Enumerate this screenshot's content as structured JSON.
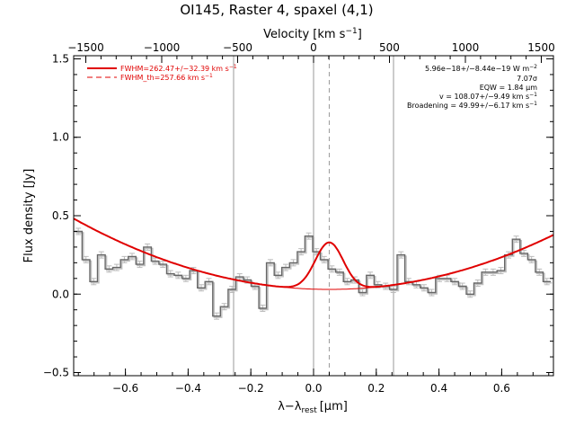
{
  "chart_data": {
    "type": "line",
    "title": "OI145, Raster 4, spaxel (4,1)",
    "xlabel_html": "λ−λrest [μm]",
    "xlabel_main": "λ−λ",
    "xlabel_sub": "rest",
    "xlabel_unit": "[μm]",
    "x2label_main": "Velocity [km s",
    "x2label_sup": "−1",
    "x2label_end": "]",
    "ylabel": "Flux density [Jy]",
    "xlim": [
      -0.765,
      0.765
    ],
    "ylim": [
      -0.52,
      1.52
    ],
    "x2lim": [
      -1580,
      1580
    ],
    "xticks": [
      -0.6,
      -0.4,
      -0.2,
      0.0,
      0.2,
      0.4,
      0.6
    ],
    "xtick_labels": [
      "−0.6",
      "−0.4",
      "−0.2",
      "0.0",
      "0.2",
      "0.4",
      "0.6"
    ],
    "yticks": [
      -0.5,
      0.0,
      0.5,
      1.0,
      1.5
    ],
    "ytick_labels": [
      "−0.5",
      "0.0",
      "0.5",
      "1.0",
      "1.5"
    ],
    "x2ticks": [
      -1500,
      -1000,
      -500,
      0,
      500,
      1000,
      1500
    ],
    "x2tick_labels": [
      "−1500",
      "−1000",
      "−500",
      "0",
      "500",
      "1000",
      "1500"
    ],
    "vlines_solid": [
      -0.255,
      0.0,
      0.255
    ],
    "vline_dashed": 0.05,
    "legend": [
      {
        "label": "FWHM=262.47+/−32.39 km s",
        "sup": "−1",
        "style": "solid"
      },
      {
        "label": "FWHM_th=257.66 km s",
        "sup": "−1",
        "style": "dashed"
      }
    ],
    "annotations": [
      {
        "text": "5.96e−18+/−8.44e−19 W m",
        "sup": "−2"
      },
      {
        "text": "7.07σ",
        "sup": ""
      },
      {
        "text": "EQW = 1.84 μm",
        "sup": ""
      },
      {
        "text": "v = 108.07+/−9.49 km s",
        "sup": "−1"
      },
      {
        "text": "Broadening = 49.99+/−6.17 km s",
        "sup": "−1"
      }
    ],
    "spectrum": {
      "bin_width": 0.0245,
      "x_start": -0.7625,
      "error": 0.02,
      "values": [
        0.4,
        0.22,
        0.08,
        0.25,
        0.16,
        0.17,
        0.22,
        0.24,
        0.19,
        0.3,
        0.21,
        0.19,
        0.13,
        0.12,
        0.1,
        0.15,
        0.04,
        0.08,
        -0.14,
        -0.08,
        0.03,
        0.11,
        0.09,
        0.05,
        -0.09,
        0.2,
        0.12,
        0.17,
        0.2,
        0.27,
        0.37,
        0.27,
        0.22,
        0.16,
        0.14,
        0.08,
        0.09,
        0.01,
        0.12,
        0.06,
        0.05,
        0.03,
        0.25,
        0.08,
        0.06,
        0.04,
        0.01,
        0.1,
        0.1,
        0.08,
        0.05,
        0.0,
        0.07,
        0.14,
        0.14,
        0.15,
        0.25,
        0.35,
        0.26,
        0.22,
        0.14,
        0.08
      ]
    },
    "fit": {
      "continuum": {
        "x0": 0.05,
        "c0": 0.03,
        "a": 0.68
      },
      "gaussian": {
        "center": 0.05,
        "amplitude": 0.3,
        "sigma": 0.045
      }
    }
  }
}
